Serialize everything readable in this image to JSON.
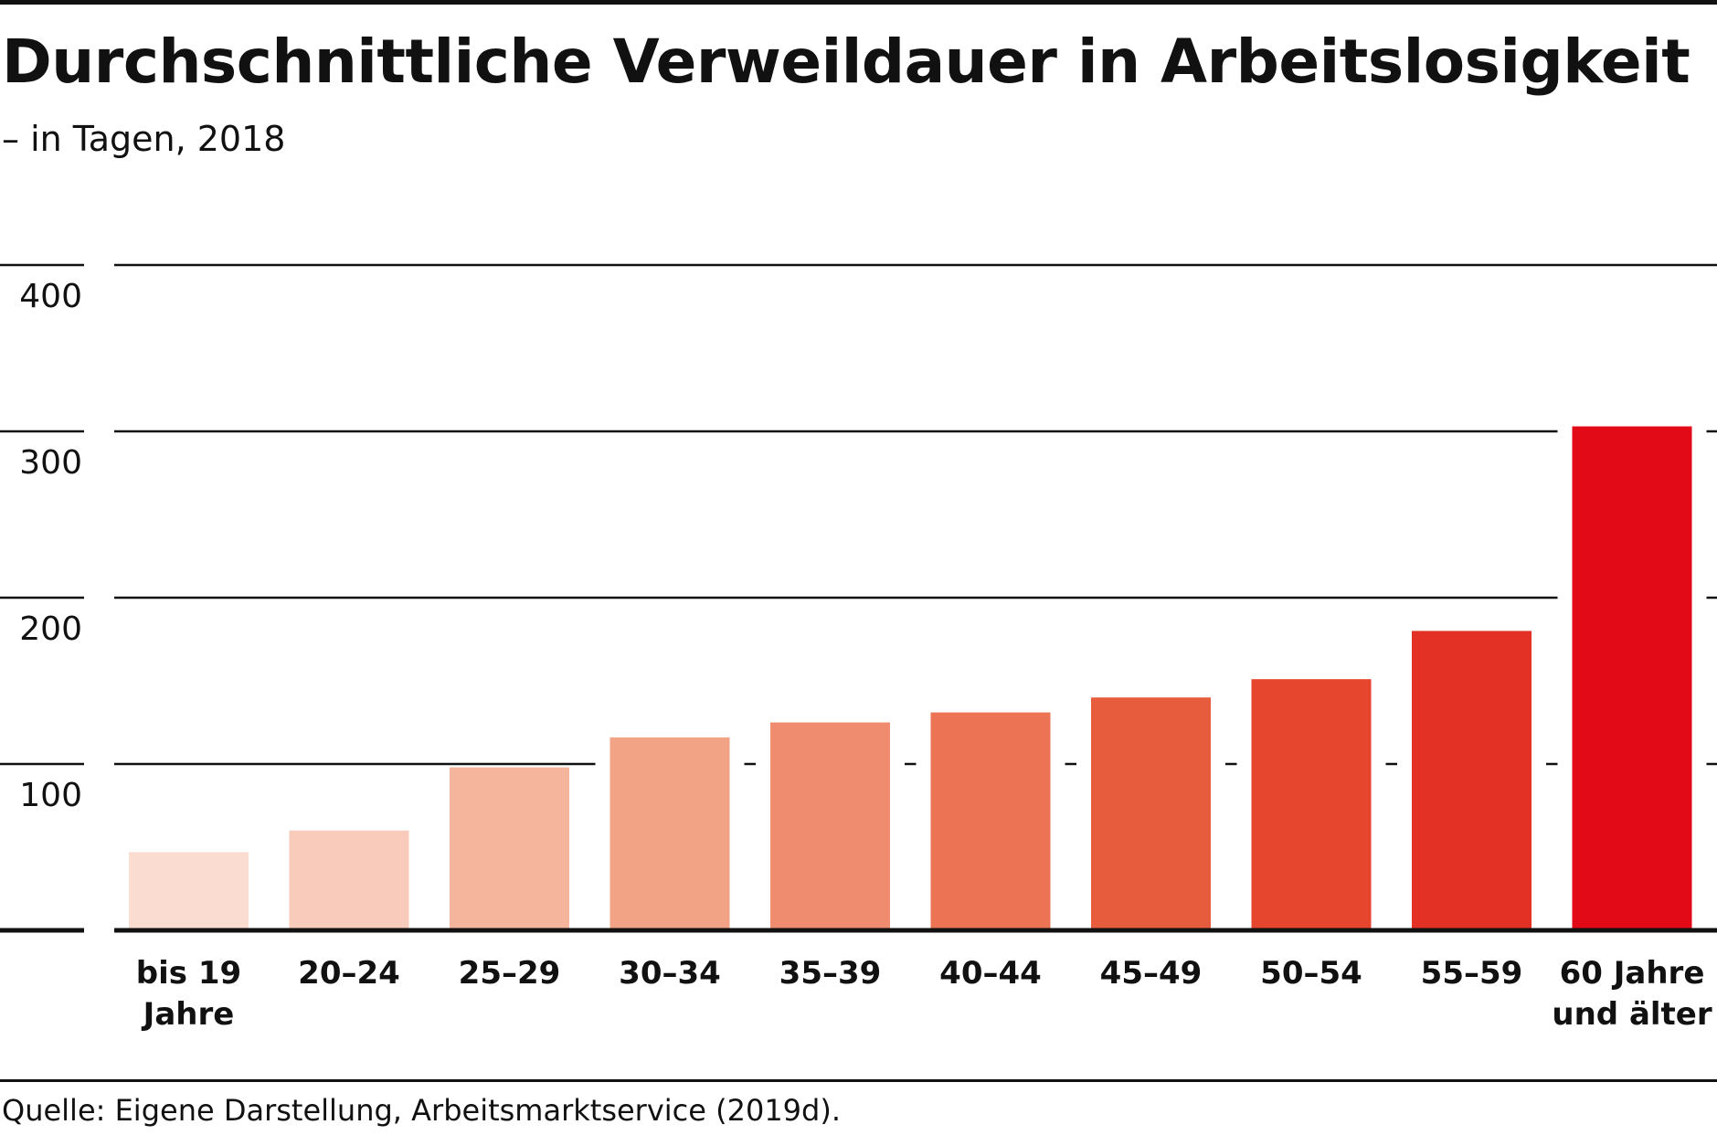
{
  "header": {
    "title": "Durchschnittliche Verweildauer in Arbeitslosigkeit",
    "subtitle": "– in Tagen, 2018"
  },
  "footer": {
    "source": "Quelle: Eigene Darstellung, Arbeitsmarktservice (2019d)."
  },
  "chart_data": {
    "type": "bar",
    "title": "Durchschnittliche Verweildauer in Arbeitslosigkeit",
    "subtitle": "– in Tagen, 2018",
    "xlabel": "",
    "ylabel": "",
    "ylim": [
      0,
      400
    ],
    "yticks": [
      400,
      300,
      200,
      100
    ],
    "grid": true,
    "categories": [
      [
        "bis 19",
        "Jahre"
      ],
      [
        "20–24"
      ],
      [
        "25–29"
      ],
      [
        "30–34"
      ],
      [
        "35–39"
      ],
      [
        "40–44"
      ],
      [
        "45–49"
      ],
      [
        "50–54"
      ],
      [
        "55–59"
      ],
      [
        "60 Jahre",
        "und älter"
      ]
    ],
    "values": [
      47,
      60,
      98,
      116,
      125,
      131,
      140,
      151,
      180,
      303
    ],
    "colors": [
      "#fadcd1",
      "#f8cbbb",
      "#f5b49c",
      "#f2a285",
      "#ef8c6f",
      "#ec7454",
      "#e85c3e",
      "#e6452e",
      "#e33225",
      "#e20a17"
    ]
  }
}
